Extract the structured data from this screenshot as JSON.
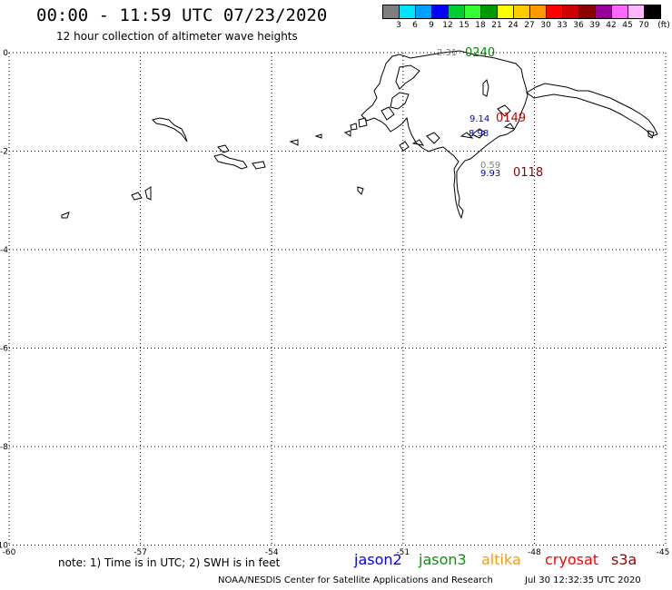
{
  "title": "00:00 - 11:59 UTC 07/23/2020",
  "subtitle": "12 hour collection of altimeter wave heights",
  "scale": {
    "labels": [
      "3",
      "6",
      "9",
      "12",
      "15",
      "18",
      "21",
      "24",
      "27",
      "30",
      "33",
      "36",
      "39",
      "42",
      "45",
      "70"
    ],
    "unit": "(ft)",
    "colors": [
      "#7f7f7f",
      "#00e5ff",
      "#00a0ff",
      "#0000ff",
      "#00cc33",
      "#33ff33",
      "#009900",
      "#ffff00",
      "#ffcc00",
      "#ff9900",
      "#ff0000",
      "#cc0000",
      "#8b0000",
      "#990099",
      "#ff66ff",
      "#ffb6ff",
      "#000000"
    ]
  },
  "axes": {
    "y_labels": [
      "0",
      "-2",
      "-4",
      "-6",
      "-8",
      "-10"
    ],
    "x_labels": [
      "-60",
      "-57",
      "-54",
      "-51",
      "-48",
      "-45"
    ]
  },
  "passes": [
    {
      "time": "0240",
      "color": "#008800"
    },
    {
      "time": "0149",
      "color": "#cc0000"
    },
    {
      "time": "0118",
      "color": "#8b0000"
    }
  ],
  "heights": [
    {
      "value": "2.31",
      "color": "#7f7f7f"
    },
    {
      "value": "9.14",
      "color": "#0000cc"
    },
    {
      "value": "8.98",
      "color": "#0000cc"
    },
    {
      "value": "0.59",
      "color": "#7f7f7f"
    },
    {
      "value": "9.93",
      "color": "#0000cc"
    }
  ],
  "footnote": "note: 1) Time is in UTC; 2) SWH is in feet",
  "satellites": [
    {
      "name": "jason2",
      "color": "#0000ff"
    },
    {
      "name": "jason3",
      "color": "#009900"
    },
    {
      "name": "altika",
      "color": "#ff9900"
    },
    {
      "name": "cryosat",
      "color": "#ff0000"
    },
    {
      "name": "s3a",
      "color": "#990000"
    }
  ],
  "credit": "NOAA/NESDIS Center for Satellite Applications and Research",
  "timestamp": "Jul 30 12:32:35 UTC 2020"
}
